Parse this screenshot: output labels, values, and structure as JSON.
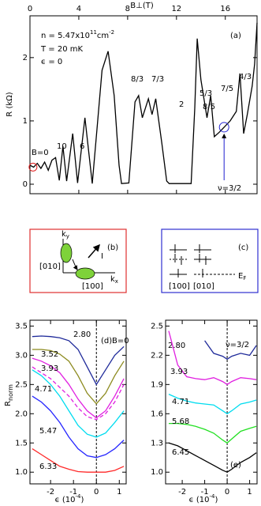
{
  "chart_data": [
    {
      "type": "line",
      "panel_label": "(a)",
      "x_label": "B⊥(T)",
      "y_label": "R (kΩ)",
      "xlim": [
        0,
        18.6
      ],
      "xticks": [
        0,
        4,
        8,
        12,
        16
      ],
      "ylim": [
        -0.15,
        2.66
      ],
      "yticks": [
        0,
        1,
        2
      ],
      "x": [
        0,
        0.3,
        0.6,
        0.9,
        1.2,
        1.5,
        1.8,
        2.1,
        2.4,
        2.7,
        3.0,
        3.5,
        3.9,
        4.5,
        5.1,
        5.5,
        5.9,
        6.4,
        6.9,
        7.3,
        7.5,
        8.1,
        8.6,
        8.9,
        9.2,
        9.7,
        10.0,
        10.3,
        10.8,
        11.2,
        11.4,
        13.2,
        13.5,
        13.7,
        14.0,
        14.5,
        14.8,
        15.1,
        15.5,
        15.9,
        16.4,
        16.9,
        17.2,
        17.5,
        17.8,
        18.2,
        18.4,
        18.6
      ],
      "series": [
        {
          "color": "#000000",
          "values": [
            0.3,
            0.27,
            0.33,
            0.25,
            0.35,
            0.22,
            0.38,
            0.42,
            0.06,
            0.6,
            0.05,
            0.8,
            0.02,
            1.05,
            0.01,
            0.9,
            1.8,
            2.1,
            1.4,
            0.3,
            0.01,
            0.02,
            1.3,
            1.4,
            1.05,
            1.35,
            1.1,
            1.35,
            0.65,
            0.05,
            0.01,
            0.01,
            1.2,
            2.3,
            1.65,
            1.05,
            1.4,
            0.75,
            0.82,
            0.9,
            1.0,
            1.15,
            1.75,
            0.8,
            1.1,
            1.55,
            1.9,
            2.55
          ]
        }
      ],
      "annotations": [
        {
          "parts": [
            "n = 5.47x10",
            "11",
            "cm",
            "-2"
          ]
        },
        {
          "parts": [
            "T = 20 mK"
          ]
        },
        {
          "parts": [
            "ϵ = 0"
          ]
        },
        {
          "parts": [
            "10"
          ]
        },
        {
          "parts": [
            "6"
          ]
        },
        {
          "parts": [
            "8/3"
          ]
        },
        {
          "parts": [
            "7/3"
          ]
        },
        {
          "parts": [
            "2"
          ]
        },
        {
          "parts": [
            "5/3"
          ]
        },
        {
          "parts": [
            "8/5"
          ]
        },
        {
          "parts": [
            "7/5"
          ]
        },
        {
          "parts": [
            "4/3"
          ]
        },
        {
          "parts": [
            "B=0"
          ]
        },
        {
          "parts": [
            "ν=3/2"
          ]
        }
      ]
    },
    {
      "type": "line",
      "panel_label": "(d)",
      "x_label": "ϵ (10",
      "x_label_sup": "-4",
      "x_label_end": ")",
      "y_label": "R",
      "y_label_sub": "norm",
      "xlim": [
        -2.9,
        1.3
      ],
      "xticks": [
        -2,
        -1,
        0,
        1
      ],
      "ylim": [
        0.8,
        3.6
      ],
      "yticks": [
        {
          "value": 1,
          "label": "1.0"
        },
        1.5,
        {
          "value": 2,
          "label": "2.0"
        },
        2.5,
        {
          "value": 3,
          "label": "3.0"
        },
        3.5
      ],
      "x": [
        -2.8,
        -2.4,
        -2,
        -1.6,
        -1.2,
        -0.8,
        -0.4,
        0,
        0.4,
        0.8,
        1.2
      ],
      "series": [
        {
          "name": "2.80",
          "color": "#1f2a9a",
          "values": [
            3.32,
            3.33,
            3.32,
            3.3,
            3.25,
            3.1,
            2.8,
            2.5,
            2.75,
            3.0,
            3.15
          ]
        },
        {
          "name": "3.52",
          "color": "#8c8a1e",
          "values": [
            3.1,
            3.1,
            3.08,
            3.02,
            2.9,
            2.65,
            2.35,
            2.17,
            2.35,
            2.65,
            2.9
          ]
        },
        {
          "name": "3.93",
          "color": "#e020e0",
          "values": [
            2.95,
            2.9,
            2.82,
            2.7,
            2.5,
            2.25,
            2.05,
            1.93,
            2.05,
            2.3,
            2.6
          ]
        },
        {
          "color": "#e020e0",
          "dashed": true,
          "values": [
            2.8,
            2.7,
            2.6,
            2.45,
            2.3,
            2.1,
            1.95,
            1.9,
            2.0,
            2.2,
            2.5
          ]
        },
        {
          "name": "4.71",
          "color": "#00dcef",
          "values": [
            2.75,
            2.65,
            2.5,
            2.3,
            2.05,
            1.8,
            1.65,
            1.6,
            1.67,
            1.85,
            2.05
          ]
        },
        {
          "name": "5.47",
          "color": "#2626ff",
          "values": [
            2.3,
            2.2,
            2.05,
            1.85,
            1.6,
            1.4,
            1.28,
            1.25,
            1.3,
            1.4,
            1.55
          ]
        },
        {
          "name": "6.33",
          "color": "#ff2a2a",
          "values": [
            1.4,
            1.3,
            1.2,
            1.1,
            1.05,
            1.01,
            1.0,
            1.0,
            1.0,
            1.03,
            1.1
          ]
        }
      ],
      "annotations": [
        {
          "parts": [
            "B=0"
          ]
        }
      ]
    },
    {
      "type": "line",
      "panel_label": "(e)",
      "x_label": "ϵ (10",
      "x_label_sup": "-4",
      "x_label_end": ")",
      "xlim": [
        -2.74,
        1.33
      ],
      "xticks": [
        -2,
        -1,
        0,
        1
      ],
      "ylim": [
        0.88,
        2.56
      ],
      "yticks": [
        {
          "value": 1,
          "label": "1.0"
        },
        1.3,
        1.6,
        1.9,
        2.2,
        2.5
      ],
      "x": [
        -2.6,
        -2.2,
        -1.8,
        -1.4,
        -1.0,
        -0.6,
        -0.2,
        0,
        0.2,
        0.6,
        1.0,
        1.3
      ],
      "series": [
        {
          "name": "2.80",
          "color": "#1f2a9a",
          "values": [
            null,
            null,
            null,
            null,
            2.35,
            2.22,
            2.19,
            2.16,
            2.19,
            2.22,
            2.2,
            2.3
          ]
        },
        {
          "name": "3.93",
          "color": "#e020e0",
          "values": [
            2.45,
            2.1,
            1.98,
            1.96,
            1.95,
            1.97,
            1.93,
            1.9,
            1.93,
            1.97,
            1.96,
            1.95
          ]
        },
        {
          "name": "4.71",
          "color": "#00dcef",
          "values": [
            1.8,
            1.76,
            1.73,
            1.71,
            1.7,
            1.69,
            1.63,
            1.6,
            1.63,
            1.7,
            1.72,
            1.74
          ]
        },
        {
          "name": "5.68",
          "color": "#22e022",
          "values": [
            1.5,
            1.5,
            1.49,
            1.47,
            1.44,
            1.4,
            1.33,
            1.3,
            1.34,
            1.42,
            1.45,
            1.47
          ]
        },
        {
          "name": "6.45",
          "color": "#000000",
          "values": [
            1.3,
            1.27,
            1.22,
            1.17,
            1.12,
            1.07,
            1.02,
            1.0,
            1.03,
            1.1,
            1.15,
            1.2
          ]
        }
      ],
      "annotations": [
        {
          "parts": [
            "ν=3/2"
          ]
        }
      ]
    }
  ],
  "panel_b": {
    "label": "(b)",
    "ky": "k",
    "ky_sub": "y",
    "kx": "k",
    "kx_sub": "x",
    "dir_010": "[010]",
    "dir_100": "[100]",
    "current": "I"
  },
  "panel_c": {
    "label": "(c)",
    "ef": "E",
    "ef_sub": "F",
    "dir_100": "[100]",
    "dir_010": "[010]"
  }
}
